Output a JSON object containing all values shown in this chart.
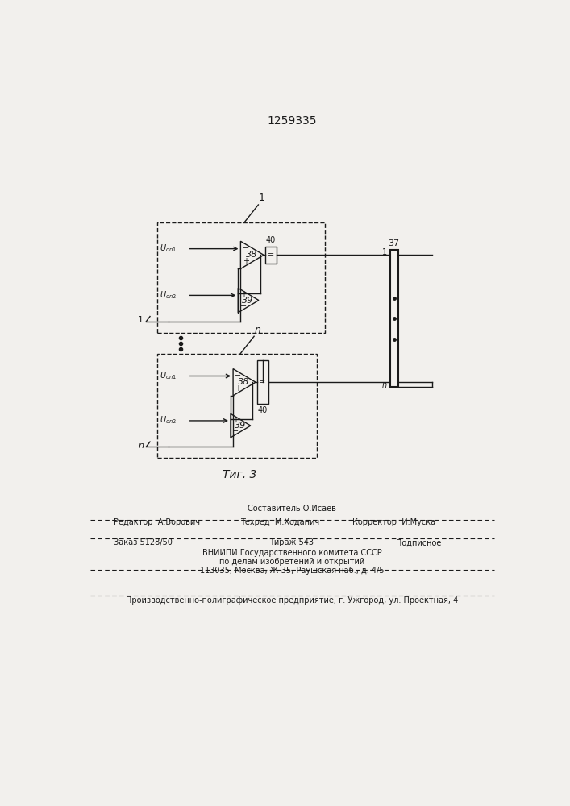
{
  "title_number": "1259335",
  "fig_caption": "Τиг. 3",
  "bg_color": "#f2f0ed",
  "line_color": "#1a1a1a",
  "footer_editor": "Редактор  А.Ворович",
  "footer_composer": "Составитель О.Исаев",
  "footer_techred": "Техред  М.Ходанич",
  "footer_corrector": "Корректор  И.Муска",
  "footer_order": "Заказ 5128/50",
  "footer_tirage": "Тираж 543",
  "footer_podp": "Подписное",
  "footer_vniip1": "ВНИИПИ Государственного комитета СССР",
  "footer_vniip2": "по делам изобретений и открытий",
  "footer_addr": "113035, Москва, Ж-35, Раушская наб., д. 4/5",
  "footer_plant": "Производственно-полиграфическое предприятие, г. Ужгород, ул. Проектная, 4"
}
